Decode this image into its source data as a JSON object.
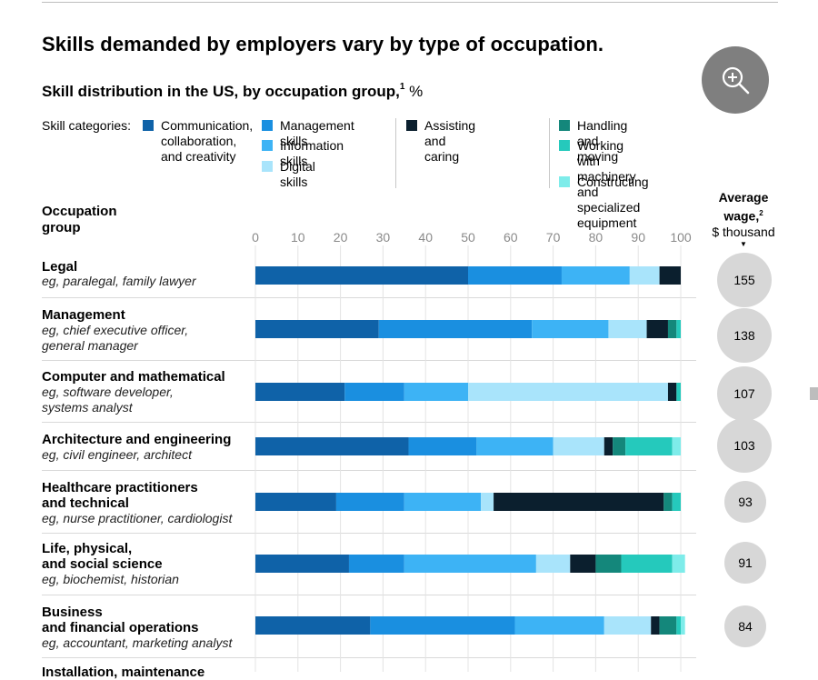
{
  "title": "Skills demanded by employers vary by type of occupation.",
  "subtitle": "Skill distribution in the US, by occupation group,",
  "subtitle_sup": "1",
  "subtitle_unit": "%",
  "zoom_icon": "zoom-in-icon",
  "legend_label": "Skill categories:",
  "occupation_header": "Occupation\ngroup",
  "wage_header": {
    "line1": "Average",
    "line2": "wage,",
    "sup": "2",
    "line3": "$ thousand",
    "arrow": "▼"
  },
  "chart_data": {
    "type": "bar",
    "orientation": "horizontal",
    "stacked": true,
    "title": "Skill distribution in the US, by occupation group",
    "xlim": [
      0,
      100
    ],
    "xticks": [
      0,
      10,
      20,
      30,
      40,
      50,
      60,
      70,
      80,
      90,
      100
    ],
    "categories": [
      "Legal",
      "Management",
      "Computer and mathematical",
      "Architecture and engineering",
      "Healthcare practitioners and technical",
      "Life, physical, and social science",
      "Business and financial operations"
    ],
    "series": [
      {
        "name": "Communication, collaboration, and creativity",
        "color": "#0f62a8",
        "values": [
          50,
          29,
          21,
          36,
          19,
          22,
          27
        ]
      },
      {
        "name": "Management skills",
        "color": "#1a8fe0",
        "values": [
          22,
          36,
          14,
          16,
          16,
          13,
          34
        ]
      },
      {
        "name": "Information skills",
        "color": "#3db3f5",
        "values": [
          16,
          18,
          15,
          18,
          18,
          31,
          21
        ]
      },
      {
        "name": "Digital skills",
        "color": "#a9e4fb",
        "values": [
          7,
          9,
          47,
          12,
          3,
          8,
          11
        ]
      },
      {
        "name": "Assisting and caring",
        "color": "#0b1f2e",
        "values": [
          5,
          5,
          2,
          2,
          40,
          6,
          2
        ]
      },
      {
        "name": "Handling and moving",
        "color": "#14877b",
        "values": [
          0,
          2,
          0,
          3,
          2,
          6,
          4
        ]
      },
      {
        "name": "Working with machinery and specialized equipment",
        "color": "#25c9bc",
        "values": [
          0,
          1,
          1,
          11,
          2,
          12,
          1
        ]
      },
      {
        "name": "Constructing",
        "color": "#7eecea",
        "values": [
          0,
          0,
          0,
          2,
          0,
          3,
          1
        ]
      }
    ],
    "wages": [
      155,
      138,
      107,
      103,
      93,
      91,
      84
    ],
    "wage_unit": "$ thousand"
  },
  "legend": [
    {
      "label": "Communication,\ncollaboration,\nand creativity",
      "color": "#0f62a8"
    },
    {
      "label": "Management skills",
      "color": "#1a8fe0"
    },
    {
      "label": "Information skills",
      "color": "#3db3f5"
    },
    {
      "label": "Digital skills",
      "color": "#a9e4fb"
    },
    {
      "label": "Assisting and caring",
      "color": "#0b1f2e"
    },
    {
      "label": "Handling and moving",
      "color": "#14877b"
    },
    {
      "label": "Working with machinery\nand specialized equipment",
      "color": "#25c9bc"
    },
    {
      "label": "Constructing",
      "color": "#7eecea"
    }
  ],
  "rows": [
    {
      "title": "Legal",
      "example": "eg, paralegal, family lawyer",
      "wage": "155"
    },
    {
      "title": "Management",
      "example": "eg, chief executive officer,\ngeneral manager",
      "wage": "138"
    },
    {
      "title": "Computer and mathematical",
      "example": "eg, software developer,\nsystems analyst",
      "wage": "107"
    },
    {
      "title": "Architecture and engineering",
      "example": "eg, civil engineer, architect",
      "wage": "103"
    },
    {
      "title": "Healthcare practitioners\nand technical",
      "example": "eg, nurse practitioner, cardiologist",
      "wage": "93"
    },
    {
      "title": "Life, physical,\nand social science",
      "example": "eg, biochemist, historian",
      "wage": "91"
    },
    {
      "title": "Business\nand financial operations",
      "example": "eg, accountant, marketing analyst",
      "wage": "84"
    },
    {
      "title": "Installation, maintenance",
      "example": "",
      "wage": ""
    }
  ]
}
